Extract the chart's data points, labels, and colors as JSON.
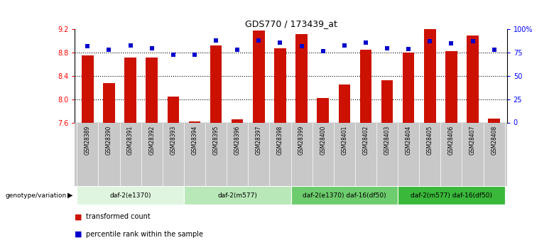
{
  "title": "GDS770 / 173439_at",
  "samples": [
    "GSM28389",
    "GSM28390",
    "GSM28391",
    "GSM28392",
    "GSM28393",
    "GSM28394",
    "GSM28395",
    "GSM28396",
    "GSM28397",
    "GSM28398",
    "GSM28399",
    "GSM28400",
    "GSM28401",
    "GSM28402",
    "GSM28403",
    "GSM28404",
    "GSM28405",
    "GSM28406",
    "GSM28407",
    "GSM28408"
  ],
  "transformed_counts": [
    8.75,
    8.28,
    8.72,
    8.72,
    8.05,
    7.62,
    8.93,
    7.66,
    9.18,
    8.87,
    9.12,
    8.02,
    8.25,
    8.85,
    8.33,
    8.8,
    9.2,
    8.83,
    9.1,
    7.67
  ],
  "percentile_ranks": [
    82,
    78,
    83,
    80,
    73,
    73,
    88,
    78,
    88,
    86,
    82,
    77,
    83,
    86,
    80,
    79,
    87,
    85,
    87,
    78
  ],
  "ylim_left": [
    7.6,
    9.2
  ],
  "ylim_right": [
    0,
    100
  ],
  "yticks_left": [
    7.6,
    8.0,
    8.4,
    8.8,
    9.2
  ],
  "yticks_right": [
    0,
    25,
    50,
    75,
    100
  ],
  "ytick_labels_right": [
    "0",
    "25",
    "50",
    "75",
    "100%"
  ],
  "groups": [
    {
      "label": "daf-2(e1370)",
      "start": 0,
      "end": 5,
      "color": "#e0f5e0"
    },
    {
      "label": "daf-2(m577)",
      "start": 5,
      "end": 10,
      "color": "#b8e8b8"
    },
    {
      "label": "daf-2(e1370) daf-16(df50)",
      "start": 10,
      "end": 15,
      "color": "#6dcc6d"
    },
    {
      "label": "daf-2(m577) daf-16(df50)",
      "start": 15,
      "end": 20,
      "color": "#3ab83a"
    }
  ],
  "bar_color": "#cc1100",
  "dot_color": "#0000cc",
  "bar_bottom": 7.6,
  "bg_color": "#ffffff",
  "sample_band_color": "#c8c8c8",
  "genotype_label": "genotype/variation",
  "legend_items": [
    {
      "color": "#cc1100",
      "label": "transformed count"
    },
    {
      "color": "#0000cc",
      "label": "percentile rank within the sample"
    }
  ],
  "grid_lines": [
    8.0,
    8.4,
    8.8
  ]
}
